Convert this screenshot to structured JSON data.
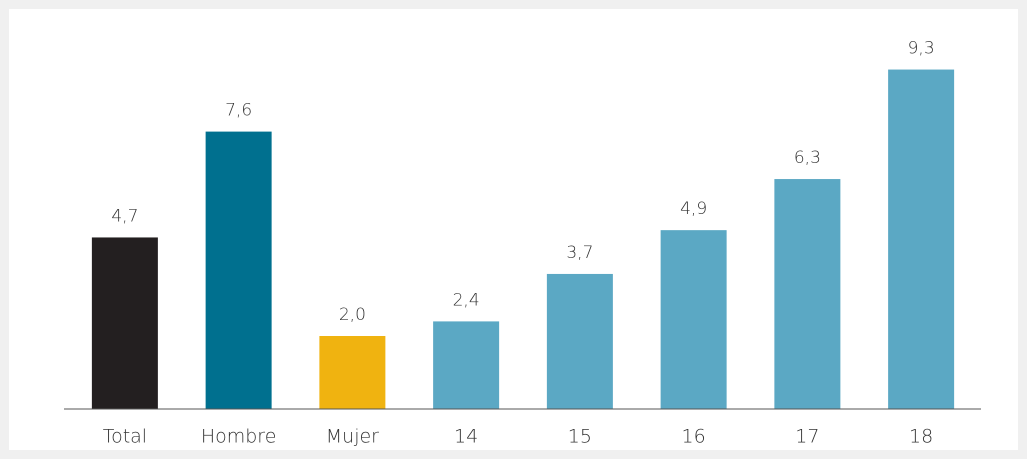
{
  "chart_data": {
    "type": "bar",
    "categories": [
      "Total",
      "Hombre",
      "Mujer",
      "14",
      "15",
      "16",
      "17",
      "18"
    ],
    "values": [
      4.7,
      7.6,
      2.0,
      2.4,
      3.7,
      4.9,
      6.3,
      9.3
    ],
    "value_labels": [
      "4,7",
      "7,6",
      "2,0",
      "2,4",
      "3,7",
      "4,9",
      "6,3",
      "9,3"
    ],
    "colors": [
      "#231f20",
      "#00708f",
      "#f0b310",
      "#5ba8c4",
      "#5ba8c4",
      "#5ba8c4",
      "#5ba8c4",
      "#5ba8c4"
    ],
    "ylim": [
      0,
      10
    ]
  }
}
